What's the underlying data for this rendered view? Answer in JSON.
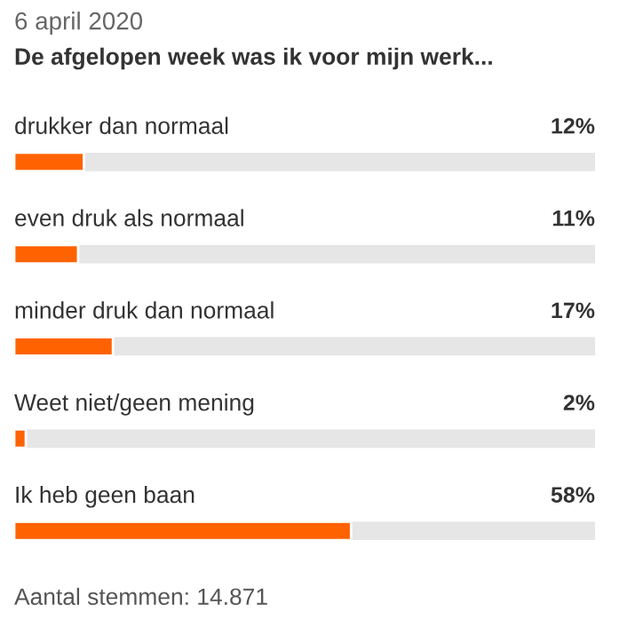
{
  "chart_data": {
    "type": "bar",
    "orientation": "horizontal",
    "subtitle": "6 april 2020",
    "title": "De afgelopen week was ik voor mijn werk...",
    "categories": [
      "drukker dan normaal",
      "even druk als normaal",
      "minder druk dan normaal",
      "Weet niet/geen mening",
      "Ik heb geen baan"
    ],
    "values": [
      12,
      11,
      17,
      2,
      58
    ],
    "value_labels": [
      "12%",
      "11%",
      "17%",
      "2%",
      "58%"
    ],
    "color": "#ff6200",
    "xlim": [
      0,
      100
    ],
    "tick_labels": false,
    "legend": false,
    "annotations": [
      "Aantal stemmen: 14.871"
    ]
  }
}
